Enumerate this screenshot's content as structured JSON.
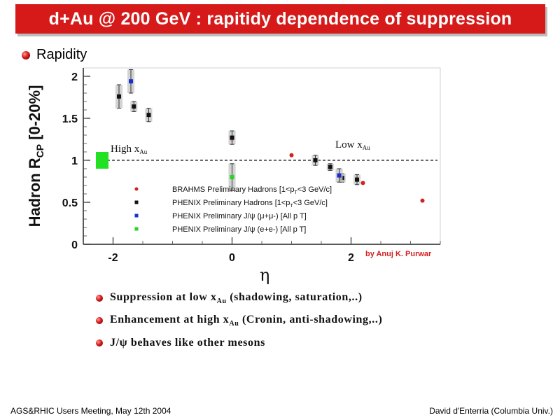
{
  "slide": {
    "title": "d+Au @ 200 GeV : rapitidy dependence of suppression",
    "section": "Rapidity",
    "bullets": [
      {
        "text": "Suppression at low x",
        "sub": "Au",
        "rest": " (shadowing, saturation,..)"
      },
      {
        "text": "Enhancement at high x",
        "sub": "Au",
        "rest": " (Cronin, anti-shadowing,..)"
      },
      {
        "text": "J/ψ behaves like other mesons",
        "sub": "",
        "rest": ""
      }
    ],
    "footer_left": "AGS&RHIC Users Meeting, May 12th 2004",
    "footer_right": "David d'Enterria (Columbia Univ.)"
  },
  "chart_data": {
    "type": "scatter",
    "title": "",
    "ylabel": "Hadron R",
    "ylabel_sub": "CP",
    "ylabel_rest": " [0-20%]",
    "xlabel": "η",
    "xlim": [
      -2.5,
      3.5
    ],
    "ylim": [
      0,
      2.1
    ],
    "xticks": [
      -2,
      0,
      2
    ],
    "yticks": [
      0,
      0.5,
      1,
      1.5,
      2
    ],
    "reference_line": 1,
    "annotations": {
      "high": {
        "text": "High x",
        "sub": "Au"
      },
      "low": {
        "text": "Low x",
        "sub": "Au"
      },
      "credit": "by Anuj K. Purwar"
    },
    "legend_position": "center",
    "series": [
      {
        "name": "BRAHMS Preliminary Hadrons [1<p",
        "sub": "T",
        "rest": "<3 GeV/c]",
        "color": "#d42020",
        "marker": "circle",
        "points": [
          {
            "x": 0.0,
            "y": 1.25
          },
          {
            "x": 1.0,
            "y": 1.06
          },
          {
            "x": 2.2,
            "y": 0.73
          },
          {
            "x": 3.2,
            "y": 0.52
          }
        ]
      },
      {
        "name": "PHENIX Preliminary Hadrons [1<p",
        "sub": "T",
        "rest": "<3 GeV/c]",
        "color": "#111111",
        "marker": "square",
        "points": [
          {
            "x": -1.9,
            "y": 1.76,
            "err": 0.14
          },
          {
            "x": -1.65,
            "y": 1.64,
            "err": 0.06
          },
          {
            "x": -1.4,
            "y": 1.54,
            "err": 0.08
          },
          {
            "x": 0.0,
            "y": 1.27,
            "err": 0.08
          },
          {
            "x": 1.4,
            "y": 1.0,
            "err": 0.06
          },
          {
            "x": 1.65,
            "y": 0.92,
            "err": 0.04
          },
          {
            "x": 1.85,
            "y": 0.79,
            "err": 0.05
          },
          {
            "x": 2.1,
            "y": 0.77,
            "err": 0.06
          }
        ]
      },
      {
        "name": "PHENIX Preliminary J/ψ (μ",
        "sub": "",
        "rest": "+μ-) [All p T]",
        "color": "#1a2fcf",
        "marker": "square",
        "points": [
          {
            "x": -1.7,
            "y": 1.94,
            "err": 0.14
          },
          {
            "x": 1.8,
            "y": 0.82,
            "err": 0.08
          }
        ]
      },
      {
        "name": "PHENIX Preliminary J/ψ (e",
        "sub": "",
        "rest": "+e-) [All p T]",
        "color": "#26d426",
        "marker": "square",
        "points": [
          {
            "x": 0.0,
            "y": 0.8,
            "err": 0.16
          }
        ]
      }
    ]
  }
}
